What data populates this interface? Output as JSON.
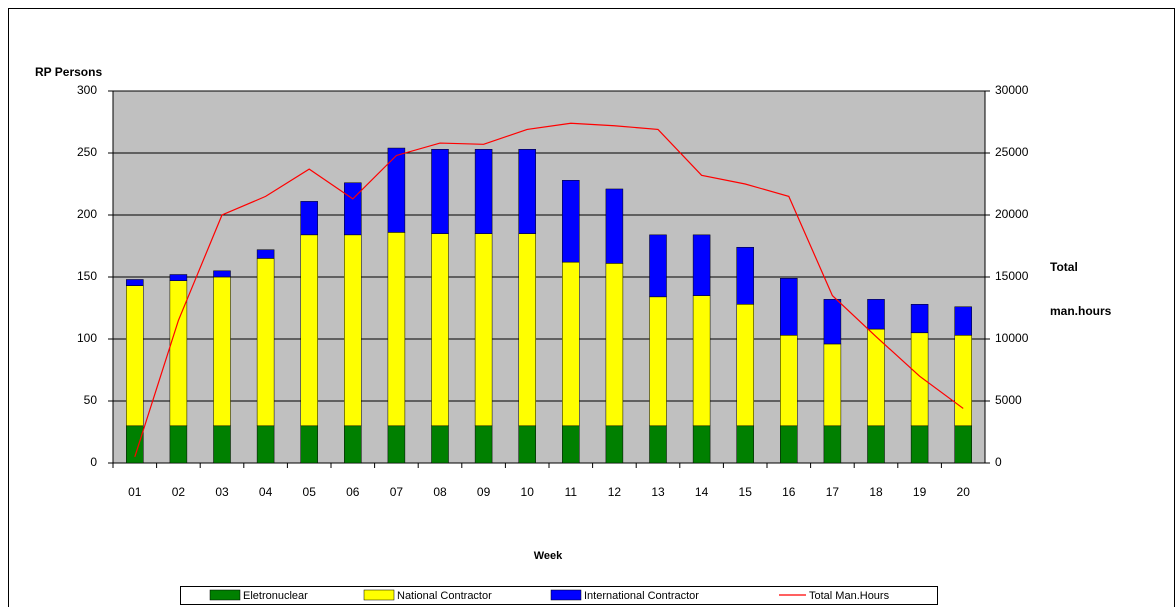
{
  "chart_data": {
    "type": "bar",
    "stacked": true,
    "ylabel": "RP Persons",
    "y2label": [
      "Total",
      "man.hours"
    ],
    "xlabel": "Week",
    "categories": [
      "01",
      "02",
      "03",
      "04",
      "05",
      "06",
      "07",
      "08",
      "09",
      "10",
      "11",
      "12",
      "13",
      "14",
      "15",
      "16",
      "17",
      "18",
      "19",
      "20"
    ],
    "series": [
      {
        "name": "Eletronuclear",
        "color": "#008000",
        "values": [
          30,
          30,
          30,
          30,
          30,
          30,
          30,
          30,
          30,
          30,
          30,
          30,
          30,
          30,
          30,
          30,
          30,
          30,
          30,
          30
        ]
      },
      {
        "name": "National Contractor",
        "color": "#ffff00",
        "values": [
          113,
          117,
          120,
          135,
          154,
          154,
          156,
          155,
          155,
          155,
          132,
          131,
          104,
          105,
          98,
          73,
          66,
          78,
          75,
          73
        ]
      },
      {
        "name": "International Contractor",
        "color": "#0000ff",
        "values": [
          5,
          5,
          5,
          7,
          27,
          42,
          68,
          68,
          68,
          68,
          66,
          60,
          50,
          49,
          46,
          46,
          36,
          24,
          23,
          23
        ]
      },
      {
        "name": "Total Man.Hours",
        "color": "#ff0000",
        "type": "line",
        "axis": "y2",
        "values": [
          500,
          11500,
          20000,
          21500,
          23700,
          21300,
          24800,
          25800,
          25700,
          26900,
          27400,
          27200,
          26900,
          23200,
          22500,
          21500,
          13500,
          10200,
          7000,
          4400
        ]
      }
    ],
    "ylim": [
      0,
      300
    ],
    "yticks": [
      0,
      50,
      100,
      150,
      200,
      250,
      300
    ],
    "y2lim": [
      0,
      30000
    ],
    "y2ticks": [
      0,
      5000,
      10000,
      15000,
      20000,
      25000,
      30000
    ],
    "grid": true,
    "plot_background": "#c0c0c0",
    "legend": "bottom"
  }
}
